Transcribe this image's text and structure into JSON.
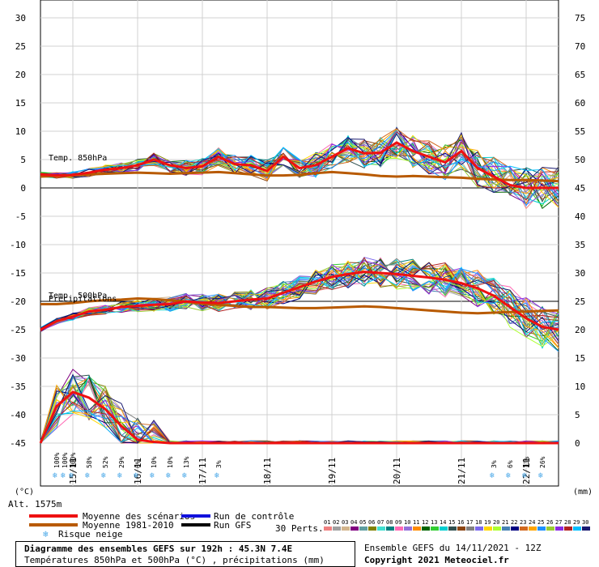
{
  "chart_data": {
    "type": "line",
    "title": "Diagramme des ensembles GEFS sur 192h : 45.3N 7.4E",
    "subtitle": "Températures 850hPa et 500hPa (°C) , précipitations (mm)",
    "left_axis": {
      "unit_label": "(°C)",
      "ylim": [
        -45,
        30
      ],
      "ticks": [
        30,
        25,
        20,
        15,
        10,
        5,
        0,
        -5,
        -10,
        -15,
        -20,
        -25,
        -30,
        -35,
        -40,
        -45
      ]
    },
    "right_axis": {
      "unit_label": "(mm)",
      "ylim": [
        0,
        75
      ],
      "ticks": [
        75,
        70,
        65,
        60,
        55,
        50,
        45,
        40,
        35,
        30,
        25,
        20,
        15,
        10,
        5,
        0
      ]
    },
    "x_axis": {
      "xlim": [
        0,
        192
      ],
      "day_ticks": [
        {
          "label": "15/11",
          "h": 12
        },
        {
          "label": "16/11",
          "h": 36
        },
        {
          "label": "17/11",
          "h": 60
        },
        {
          "label": "18/11",
          "h": 84
        },
        {
          "label": "19/11",
          "h": 108
        },
        {
          "label": "20/11",
          "h": 132
        },
        {
          "label": "21/11",
          "h": 156
        },
        {
          "label": "22/11",
          "h": 180
        }
      ]
    },
    "altitude": "Alt. 1575m",
    "series_labels": {
      "t850": "Temp. 850hPa",
      "t500": "Temp. 500hPa",
      "precip": "Precipitations"
    },
    "x": [
      0,
      6,
      12,
      18,
      24,
      30,
      36,
      42,
      48,
      54,
      60,
      66,
      72,
      78,
      84,
      90,
      96,
      102,
      108,
      114,
      120,
      126,
      132,
      138,
      144,
      150,
      156,
      162,
      168,
      174,
      180,
      186,
      192
    ],
    "series": [
      {
        "name": "Moyenne des scénarios",
        "color": "#ee1111",
        "values_t850": [
          2.4,
          2.2,
          2.3,
          2.7,
          3.2,
          3.5,
          4,
          5,
          4,
          3.5,
          3.8,
          5.5,
          4.2,
          4,
          3,
          5.5,
          3.5,
          4,
          5.5,
          7,
          6.1,
          6.2,
          8,
          6.5,
          5.5,
          4.5,
          6.5,
          3.5,
          2,
          0.5,
          0,
          0,
          0
        ],
        "values_t500": [
          -25,
          -23.5,
          -22.7,
          -21.8,
          -21.5,
          -21,
          -20.8,
          -20.6,
          -20.5,
          -20,
          -20.2,
          -20.3,
          -20,
          -19.7,
          -19.5,
          -18.5,
          -17.5,
          -16.5,
          -15.7,
          -15.2,
          -14.8,
          -15,
          -15.2,
          -15.5,
          -15.8,
          -16.2,
          -16.8,
          -17.7,
          -19,
          -21,
          -23,
          -24.5,
          -25
        ]
      },
      {
        "name": "Moyenne 1981-2010",
        "color": "#b85a00",
        "values_t850": [
          2,
          2.1,
          2.2,
          2.4,
          2.5,
          2.6,
          2.7,
          2.6,
          2.5,
          2.6,
          2.7,
          2.8,
          2.6,
          2.4,
          2.2,
          2.2,
          2.3,
          2.6,
          2.8,
          2.6,
          2.4,
          2.1,
          2,
          2.1,
          2,
          1.9,
          1.8,
          1.6,
          1.5,
          1.4,
          1.4,
          1.3,
          1.2
        ],
        "values_t500": [
          -20.5,
          -20.5,
          -20.3,
          -20,
          -19.8,
          -19.7,
          -19.5,
          -19.6,
          -19.8,
          -20.1,
          -20.4,
          -20.6,
          -20.8,
          -21,
          -21,
          -21.1,
          -21.2,
          -21.2,
          -21.1,
          -21,
          -20.9,
          -21,
          -21.2,
          -21.4,
          -21.6,
          -21.8,
          -22,
          -22.1,
          -22,
          -21.9,
          -21.8,
          -21.7,
          -21.6
        ]
      },
      {
        "name": "Run de contrôle",
        "color": "#1111dd"
      },
      {
        "name": "Run GFS",
        "color": "#000000"
      }
    ],
    "precip_mean": [
      0,
      6.5,
      9,
      8,
      6,
      3,
      0.6,
      0.2,
      0,
      0,
      0,
      0,
      0,
      0,
      0,
      0,
      0,
      0,
      0,
      0,
      0,
      0,
      0,
      0,
      0,
      0,
      0,
      0,
      0,
      0,
      0,
      0,
      0
    ],
    "precip_lines": 1,
    "perturbations": {
      "label": "30 Perts.",
      "ids": [
        "01",
        "02",
        "03",
        "04",
        "05",
        "06",
        "07",
        "08",
        "09",
        "10",
        "11",
        "12",
        "13",
        "14",
        "15",
        "16",
        "17",
        "18",
        "19",
        "20",
        "21",
        "22",
        "23",
        "24",
        "25",
        "26",
        "27",
        "28",
        "29",
        "30"
      ]
    },
    "snow_risk": [
      {
        "h": 6,
        "pct": "100%"
      },
      {
        "h": 9,
        "pct": "100%"
      },
      {
        "h": 12,
        "pct": "100%"
      },
      {
        "h": 18,
        "pct": "58%"
      },
      {
        "h": 24,
        "pct": "52%"
      },
      {
        "h": 30,
        "pct": "29%"
      },
      {
        "h": 36,
        "pct": "6%"
      },
      {
        "h": 42,
        "pct": "10%"
      },
      {
        "h": 48,
        "pct": "10%"
      },
      {
        "h": 54,
        "pct": "13%"
      },
      {
        "h": 66,
        "pct": "3%"
      },
      {
        "h": 168,
        "pct": "3%"
      },
      {
        "h": 174,
        "pct": "6%"
      },
      {
        "h": 180,
        "pct": "13%"
      },
      {
        "h": 186,
        "pct": "26%"
      }
    ],
    "legend": {
      "mean": "Moyenne des scénarios",
      "clim": "Moyenne 1981-2010",
      "snow": "Risque neige",
      "control": "Run de contrôle",
      "gfs": "Run GFS"
    }
  },
  "footer": {
    "title": "Diagramme des ensembles GEFS sur 192h : 45.3N 7.4E",
    "subtitle": "Températures 850hPa et 500hPa (°C) , précipitations (mm)",
    "run": "Ensemble GEFS du 14/11/2021 - 12Z",
    "copyright": "Copyright 2021 Meteociel.fr"
  },
  "colors": {
    "mean": "#ee1111",
    "clim": "#b85a00",
    "control": "#1111dd",
    "gfs": "#000000",
    "snow": "#4aa8e8",
    "perts": [
      "#f08080",
      "#a0a0a0",
      "#d2b48c",
      "#800080",
      "#5f9ea0",
      "#808000",
      "#40e0d0",
      "#008080",
      "#ff69b4",
      "#9370db",
      "#ff8c00",
      "#006400",
      "#32cd32",
      "#00ced1",
      "#2f4f4f",
      "#8b4513",
      "#808080",
      "#7b68ee",
      "#ffd700",
      "#adff2f",
      "#4682b4",
      "#000080",
      "#d2691e",
      "#ffa500",
      "#1e90ff",
      "#9acd32",
      "#8a2be2",
      "#b22222",
      "#00bfff",
      "#191970"
    ]
  }
}
